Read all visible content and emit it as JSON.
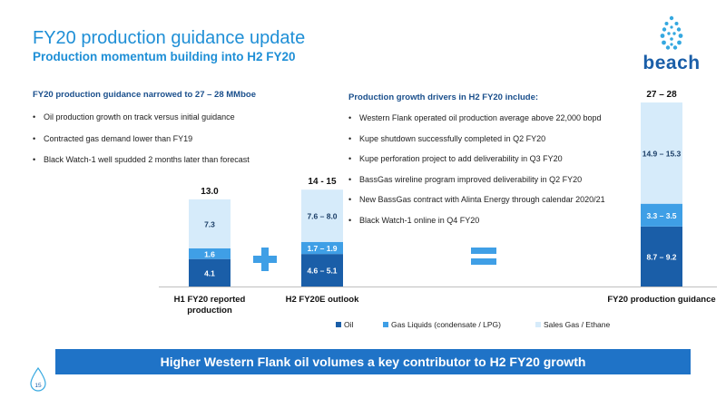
{
  "slide": {
    "title": "FY20 production guidance update",
    "subtitle": "Production momentum building into H2 FY20",
    "logo_text": "beach",
    "page_number": "15",
    "banner": "Higher Western Flank oil volumes a key contributor to H2 FY20 growth"
  },
  "left_panel": {
    "heading": "FY20 production guidance narrowed to 27 – 28 MMboe",
    "bullets": [
      "Oil production growth on track versus initial guidance",
      "Contracted gas demand lower than FY19",
      "Black Watch-1 well spudded 2 months later than forecast"
    ]
  },
  "right_panel": {
    "heading": "Production growth drivers in H2 FY20 include:",
    "bullets": [
      "Western Flank operated oil production average above 22,000 bopd",
      "Kupe shutdown successfully completed in Q2 FY20",
      "Kupe perforation project to add deliverability in Q3 FY20",
      "BassGas wireline program improved deliverability in Q2 FY20",
      "New BassGas contract with Alinta Energy through calendar 2020/21",
      "Black Watch-1 online in Q4 FY20"
    ]
  },
  "chart_data": {
    "type": "bar",
    "stacked": true,
    "unit": "MMboe",
    "categories": [
      "H1 FY20 reported production",
      "H2 FY20E outlook",
      "FY20 production guidance"
    ],
    "category_label_lines": [
      [
        "H1 FY20 reported",
        "production"
      ],
      [
        "H2 FY20E outlook"
      ],
      [
        "FY20 production guidance"
      ]
    ],
    "series": [
      {
        "name": "Oil",
        "color": "#1a5ea8",
        "values": [
          4.1,
          4.85,
          8.95
        ],
        "labels": [
          "4.1",
          "4.6 – 5.1",
          "8.7 – 9.2"
        ]
      },
      {
        "name": "Gas Liquids (condensate / LPG)",
        "color": "#3f9fe6",
        "values": [
          1.6,
          1.8,
          3.4
        ],
        "labels": [
          "1.6",
          "1.7 – 1.9",
          "3.3 – 3.5"
        ]
      },
      {
        "name": "Sales Gas / Ethane",
        "color": "#d6ebfa",
        "values": [
          7.3,
          7.8,
          15.1
        ],
        "labels": [
          "7.3",
          "7.6 – 8.0",
          "14.9 – 15.3"
        ]
      }
    ],
    "totals": [
      "13.0",
      "14 - 15",
      "27 – 28"
    ],
    "operators": [
      "+",
      "="
    ],
    "legend_position": "bottom",
    "grid": false
  }
}
